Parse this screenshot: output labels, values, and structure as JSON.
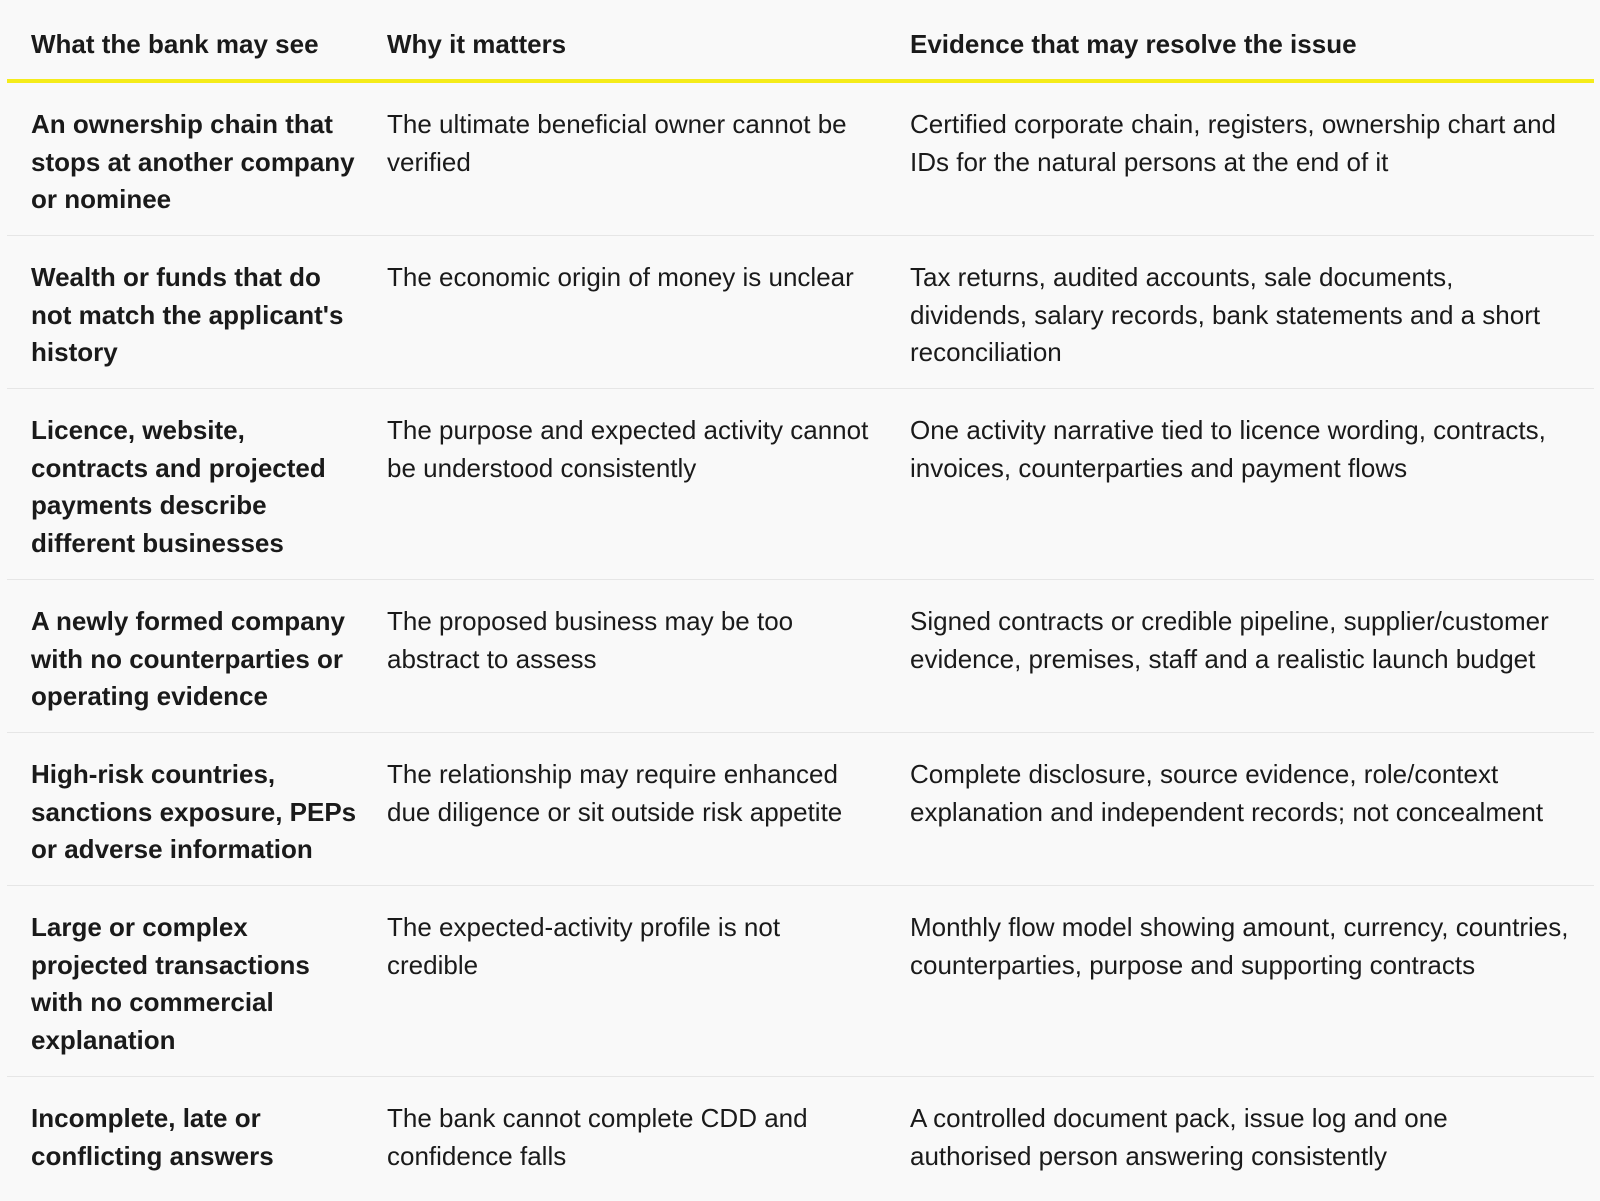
{
  "headers": {
    "col1": "What the bank may see",
    "col2": "Why it matters",
    "col3": "Evidence that may resolve the issue"
  },
  "rows": [
    {
      "see": "An ownership chain that stops at another company or nominee",
      "why": "The ultimate beneficial owner cannot be verified",
      "evidence": "Certified corporate chain, registers, ownership chart and IDs for the natural persons at the end of it"
    },
    {
      "see": "Wealth or funds that do not match the applicant's history",
      "why": "The economic origin of money is unclear",
      "evidence": "Tax returns, audited accounts, sale documents, dividends, salary records, bank statements and a short reconciliation"
    },
    {
      "see": "Licence, website, contracts and projected payments describe different businesses",
      "why": "The purpose and expected activity cannot be understood consistently",
      "evidence": "One activity narrative tied to licence wording, contracts, invoices, counterparties and payment flows"
    },
    {
      "see": "A newly formed company with no counterparties or operating evidence",
      "why": "The proposed business may be too abstract to assess",
      "evidence": "Signed contracts or credible pipeline, supplier/customer evidence, premises, staff and a realistic launch budget"
    },
    {
      "see": "High-risk countries, sanctions exposure, PEPs or adverse information",
      "why": "The relationship may require enhanced due diligence or sit outside risk appetite",
      "evidence": "Complete disclosure, source evidence, role/context explanation and independent records; not concealment"
    },
    {
      "see": "Large or complex projected transactions with no commercial explanation",
      "why": "The expected-activity profile is not credible",
      "evidence": "Monthly flow model showing amount, currency, countries, counterparties, purpose and supporting contracts"
    },
    {
      "see": "Incomplete, late or conflicting answers",
      "why": "The bank cannot complete CDD and confidence falls",
      "evidence": "A controlled document pack, issue log and one authorised person answering consistently"
    }
  ]
}
